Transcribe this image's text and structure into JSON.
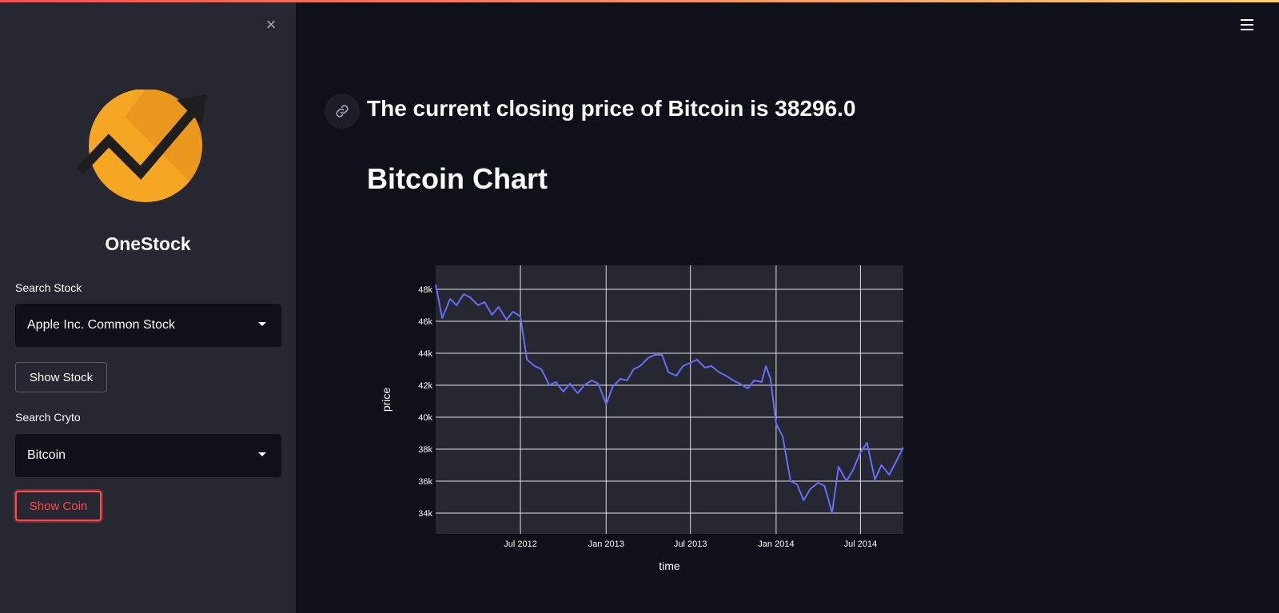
{
  "sidebar": {
    "close_label": "×",
    "brand": "OneStock",
    "stock_label": "Search Stock",
    "stock_value": "Apple Inc. Common Stock",
    "show_stock": "Show Stock",
    "crypto_label": "Search Cryto",
    "crypto_value": "Bitcoin",
    "show_coin": "Show Coin"
  },
  "main": {
    "headline": "The current closing price of Bitcoin is 38296.0",
    "chart_title": "Bitcoin Chart"
  },
  "colors": {
    "background": "#0e1117",
    "sidebar": "#262730",
    "plot_bg": "#262730",
    "accent": "#ff4b4b",
    "line": "#636efa",
    "logo_orange": "#f5a623"
  },
  "icons": [
    "close-icon",
    "menu-icon",
    "link-icon",
    "logo-icon",
    "chevron-down-icon"
  ],
  "chart_data": {
    "type": "line",
    "xlabel": "time",
    "ylabel": "price",
    "x_ticks": [
      "Jul 2012",
      "Jan 2013",
      "Jul 2013",
      "Jan 2014",
      "Jul 2014"
    ],
    "y_ticks": [
      "34k",
      "36k",
      "38k",
      "40k",
      "42k",
      "44k",
      "46k",
      "48k"
    ],
    "xlim": [
      "2012-01-01",
      "2014-10-01"
    ],
    "ylim": [
      32700,
      49500
    ],
    "grid": true,
    "series": [
      {
        "x": [
          "2012-01-01",
          "2012-01-15",
          "2012-02-01",
          "2012-02-15",
          "2012-03-01",
          "2012-03-15",
          "2012-04-01",
          "2012-04-15",
          "2012-05-01",
          "2012-05-15",
          "2012-06-01",
          "2012-06-15",
          "2012-07-01",
          "2012-07-15",
          "2012-08-01",
          "2012-08-15",
          "2012-09-01",
          "2012-09-15",
          "2012-10-01",
          "2012-10-15",
          "2012-11-01",
          "2012-11-15",
          "2012-12-01",
          "2012-12-15",
          "2013-01-01",
          "2013-01-15",
          "2013-02-01",
          "2013-02-15",
          "2013-03-01",
          "2013-03-15",
          "2013-04-01",
          "2013-04-15",
          "2013-05-01",
          "2013-05-15",
          "2013-06-01",
          "2013-06-15",
          "2013-07-01",
          "2013-07-15",
          "2013-08-01",
          "2013-08-15",
          "2013-09-01",
          "2013-09-15",
          "2013-10-01",
          "2013-10-15",
          "2013-11-01",
          "2013-11-15",
          "2013-12-01",
          "2013-12-10",
          "2013-12-20",
          "2014-01-01",
          "2014-01-15",
          "2014-02-01",
          "2014-02-15",
          "2014-03-01",
          "2014-03-15",
          "2014-04-01",
          "2014-04-15",
          "2014-05-01",
          "2014-05-15",
          "2014-06-01",
          "2014-06-15",
          "2014-07-01",
          "2014-07-15",
          "2014-08-01",
          "2014-08-15",
          "2014-09-01",
          "2014-09-15",
          "2014-10-01"
        ],
        "y": [
          48300,
          46200,
          47400,
          47000,
          47700,
          47500,
          47000,
          47200,
          46400,
          46900,
          46100,
          46600,
          46300,
          43600,
          43200,
          43000,
          42000,
          42200,
          41600,
          42100,
          41500,
          42000,
          42300,
          42100,
          40800,
          41900,
          42400,
          42300,
          43000,
          43200,
          43700,
          43900,
          43900,
          42800,
          42600,
          43200,
          43400,
          43600,
          43100,
          43200,
          42800,
          42600,
          42300,
          42100,
          41800,
          42300,
          42200,
          43200,
          42400,
          39600,
          38800,
          36000,
          35800,
          34800,
          35500,
          35900,
          35700,
          34000,
          36900,
          36000,
          36700,
          37800,
          38400,
          36100,
          37000,
          36400,
          37200,
          38100
        ]
      }
    ]
  }
}
